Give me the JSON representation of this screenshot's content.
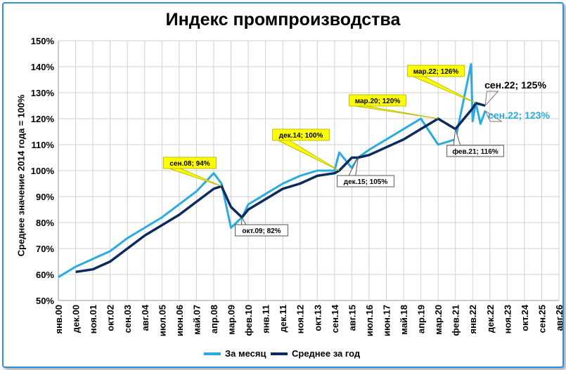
{
  "colors": {
    "monthly": "#29abe2",
    "average": "#0b2a5e",
    "grid": "#d0d0d0",
    "callout_yellow": "#ffff00",
    "callout_white": "#ffffff",
    "frame": "#2f8fd8"
  },
  "chart_data": {
    "type": "line",
    "title": "Индекс промпроизводства",
    "xlabel": "",
    "ylabel": "Среднее значение 2014 года = 100%",
    "ylim": [
      50,
      150
    ],
    "yticks": [
      "50%",
      "60%",
      "70%",
      "80%",
      "90%",
      "100%",
      "110%",
      "120%",
      "130%",
      "140%",
      "150%"
    ],
    "xticks": [
      "янв.00",
      "дек.00",
      "ноя.01",
      "окт.02",
      "сен.03",
      "авг.04",
      "июл.05",
      "июн.06",
      "май.07",
      "апр.08",
      "мар.09",
      "фев.10",
      "янв.11",
      "дек.11",
      "ноя.12",
      "окт.13",
      "сен.14",
      "авг.15",
      "июл.16",
      "июн.17",
      "май.18",
      "апр.19",
      "мар.20",
      "фев.21",
      "янв.22",
      "дек.22",
      "ноя.23",
      "окт.24",
      "сен.25",
      "авг.26"
    ],
    "grid": true,
    "legend_position": "bottom",
    "series": [
      {
        "name": "За месяц",
        "x": [
          "янв.00",
          "дек.00",
          "ноя.01",
          "окт.02",
          "сен.03",
          "авг.04",
          "июл.05",
          "июн.06",
          "май.07",
          "апр.08",
          "сен.08",
          "мар.09",
          "окт.09",
          "фев.10",
          "янв.11",
          "дек.11",
          "ноя.12",
          "окт.13",
          "дек.14",
          "сен.14",
          "авг.15",
          "дек.15",
          "июл.16",
          "июн.17",
          "май.18",
          "апр.19",
          "мар.20",
          "фев.21",
          "дек.21",
          "янв.22",
          "мар.22",
          "июн.22",
          "сен.22"
        ],
        "values": [
          59,
          63,
          66,
          69,
          74,
          78,
          82,
          87,
          92,
          99,
          95,
          78,
          82,
          87,
          91,
          95,
          98,
          100,
          107,
          100,
          101,
          105,
          108,
          112,
          116,
          120,
          110,
          112,
          141,
          119,
          126,
          118,
          123
        ]
      },
      {
        "name": "Среднее за год",
        "x": [
          "дек.00",
          "ноя.01",
          "окт.02",
          "сен.03",
          "авг.04",
          "июл.05",
          "июн.06",
          "май.07",
          "апр.08",
          "сен.08",
          "мар.09",
          "окт.09",
          "фев.10",
          "янв.11",
          "дек.11",
          "ноя.12",
          "окт.13",
          "дек.14",
          "сен.14",
          "авг.15",
          "дек.15",
          "июл.16",
          "июн.17",
          "май.18",
          "апр.19",
          "мар.20",
          "фев.21",
          "янв.22",
          "мар.22",
          "сен.22"
        ],
        "values": [
          61,
          62,
          65,
          70,
          75,
          79,
          83,
          88,
          93,
          94,
          86,
          82,
          85,
          89,
          93,
          95,
          98,
          100,
          99,
          105,
          105,
          106,
          109,
          112,
          116,
          120,
          116,
          124,
          126,
          125
        ]
      }
    ],
    "annotations": [
      {
        "text": "сен.08; 94%",
        "style": "yellow"
      },
      {
        "text": "окт.09; 82%",
        "style": "white"
      },
      {
        "text": "дек.14; 100%",
        "style": "yellow"
      },
      {
        "text": "дек.15; 105%",
        "style": "white"
      },
      {
        "text": "мар.20; 120%",
        "style": "yellow"
      },
      {
        "text": "мар.22; 126%",
        "style": "yellow"
      },
      {
        "text": "фев.21; 116%",
        "style": "white"
      },
      {
        "text": "сен.22; 125%",
        "style": "big-dark"
      },
      {
        "text": "сен.22; 123%",
        "style": "big-light"
      }
    ]
  }
}
